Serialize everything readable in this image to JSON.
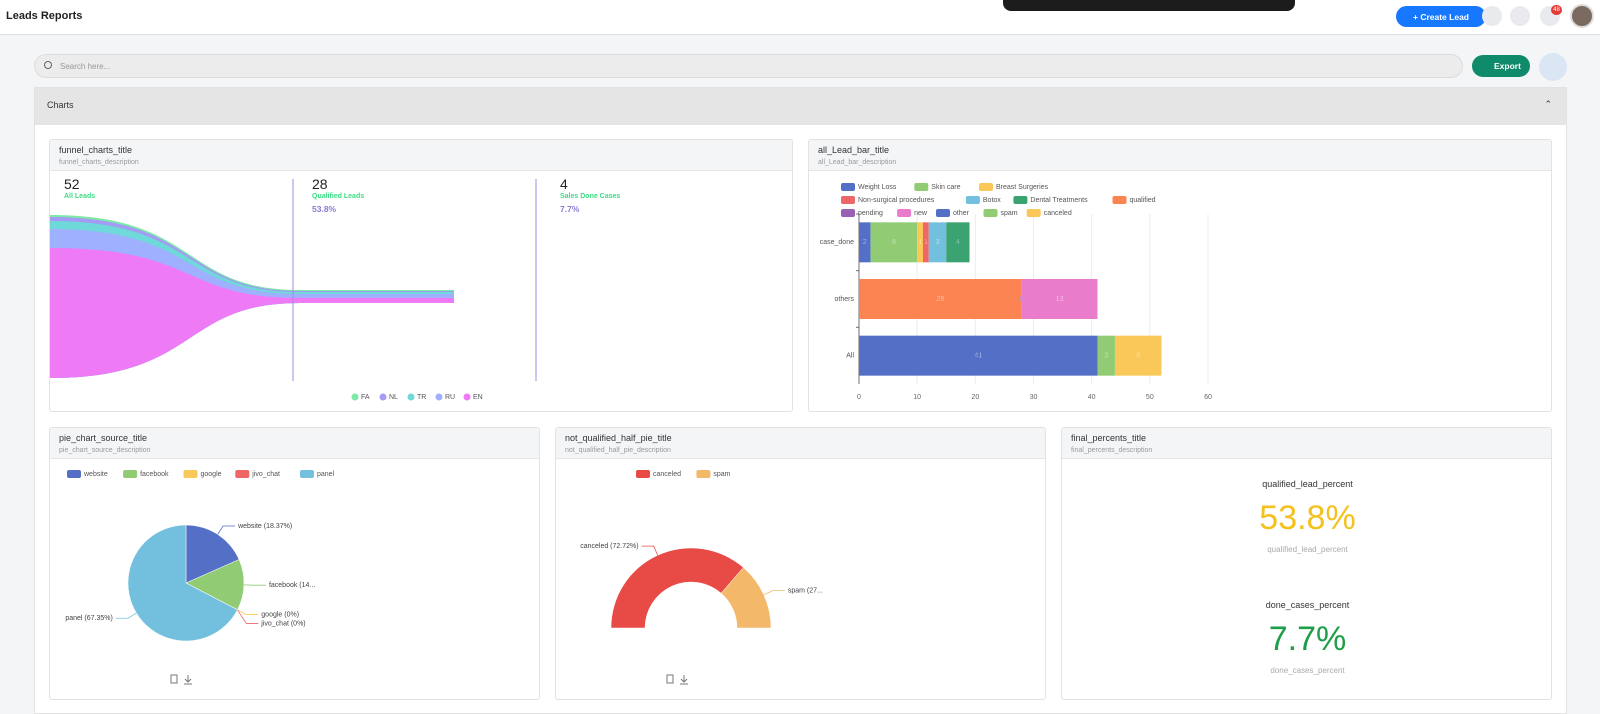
{
  "header": {
    "title": "Leads Reports",
    "create_button": "Create Lead",
    "notification_count": "48"
  },
  "search": {
    "placeholder": "Search here...",
    "export_button": "Export"
  },
  "section_title": "Charts",
  "funnel_panel": {
    "title": "funnel_charts_title",
    "description": "funnel_charts_description",
    "stages": [
      {
        "count": 52,
        "label": "All Leads"
      },
      {
        "count": 28,
        "label": "Qualified Leads",
        "percent": "53.8%"
      },
      {
        "count": 4,
        "label": "Sales Done Cases",
        "percent": "7.7%"
      }
    ],
    "legend": [
      {
        "name": "FA",
        "color": "#7ee8a6"
      },
      {
        "name": "NL",
        "color": "#a39bf5"
      },
      {
        "name": "TR",
        "color": "#6fd8d8"
      },
      {
        "name": "RU",
        "color": "#9fb0ff"
      },
      {
        "name": "EN",
        "color": "#ee7af5"
      }
    ]
  },
  "bar_panel": {
    "title": "all_Lead_bar_title",
    "description": "all_Lead_bar_description",
    "type": "bar",
    "categories": [
      "case_done",
      "others",
      "All"
    ],
    "series": [
      {
        "name": "Weight Loss",
        "color": "#5470c6",
        "values": [
          2,
          null,
          null
        ]
      },
      {
        "name": "Skin care",
        "color": "#91cc75",
        "values": [
          8,
          null,
          null
        ]
      },
      {
        "name": "Breast Surgeries",
        "color": "#fac858",
        "values": [
          1,
          null,
          null
        ]
      },
      {
        "name": "Non-surgical procedures",
        "color": "#ee6666",
        "values": [
          1,
          null,
          null
        ]
      },
      {
        "name": "Botox",
        "color": "#73c0de",
        "values": [
          3,
          null,
          null
        ]
      },
      {
        "name": "Dental Treatments",
        "color": "#3ba272",
        "values": [
          4,
          null,
          null
        ]
      },
      {
        "name": "qualified",
        "color": "#fc8452",
        "values": [
          null,
          28,
          null
        ]
      },
      {
        "name": "pending",
        "color": "#9a60b4",
        "values": [
          null,
          0,
          null
        ]
      },
      {
        "name": "new",
        "color": "#ea7ccc",
        "values": [
          null,
          13,
          null
        ]
      },
      {
        "name": "other",
        "color": "#5470c6",
        "values": [
          null,
          null,
          41
        ]
      },
      {
        "name": "spam",
        "color": "#91cc75",
        "values": [
          null,
          null,
          3
        ]
      },
      {
        "name": "canceled",
        "color": "#fac858",
        "values": [
          null,
          null,
          8
        ]
      }
    ],
    "xlim": [
      0,
      60
    ],
    "xticks": [
      0,
      10,
      20,
      30,
      40,
      50,
      60
    ],
    "grid": true
  },
  "pie_panel": {
    "title": "pie_chart_source_title",
    "description": "pie_chart_source_description",
    "type": "pie",
    "categories": [
      "website",
      "facebook",
      "google",
      "jivo_chat",
      "panel"
    ],
    "values": [
      18.37,
      14.28,
      0,
      0,
      67.35
    ],
    "value_labels": [
      "website (18.37%)",
      "facebook (14...",
      "google (0%)",
      "jivo_chat (0%)",
      "panel (67.35%)"
    ],
    "colors": [
      "#5470c6",
      "#91cc75",
      "#fac858",
      "#ee6666",
      "#73c0de"
    ]
  },
  "half_pie_panel": {
    "title": "not_qualified_half_pie_title",
    "description": "not_qualified_half_pie_description",
    "type": "half_pie",
    "categories": [
      "canceled",
      "spam"
    ],
    "values": [
      72.72,
      27.28
    ],
    "value_labels": [
      "canceled (72.72%)",
      "spam (27..."
    ],
    "colors": [
      "#e84a45",
      "#f4b86a"
    ]
  },
  "final_panel": {
    "title": "final_percents_title",
    "description": "final_percents_description",
    "metrics": [
      {
        "name": "qualified_lead_percent",
        "value": "53.8%",
        "caption": "qualified_lead_percent",
        "color": "#f4c11e"
      },
      {
        "name": "done_cases_percent",
        "value": "7.7%",
        "caption": "done_cases_percent",
        "color": "#1e9e48"
      }
    ]
  }
}
